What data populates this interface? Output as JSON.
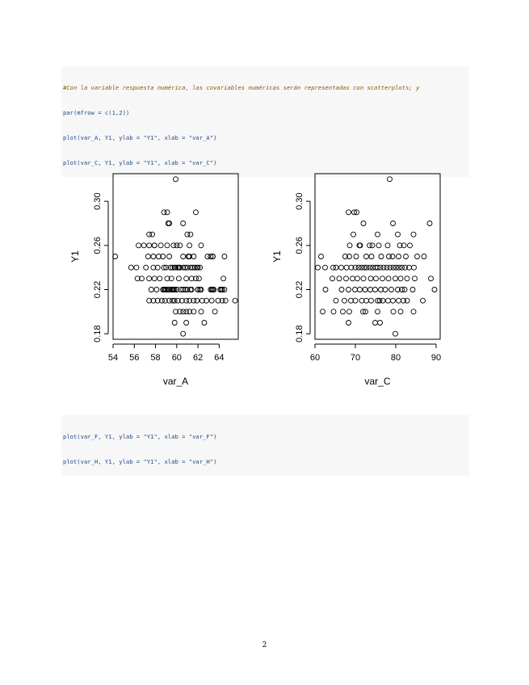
{
  "code_block_1": {
    "lines": [
      "#Con la variable respuesta numérica, las covariables numéricas serán representadas con scatterplots; y",
      "par(mfrow = c(1,2))",
      "plot(var_A, Y1, ylab = \"Y1\", xlab = \"var_A\")",
      "plot(var_C, Y1, ylab = \"Y1\", xlab = \"var_C\")"
    ]
  },
  "code_block_2": {
    "lines": [
      "plot(var_F, Y1, ylab = \"Y1\", xlab = \"var_F\")",
      "plot(var_H, Y1, ylab = \"Y1\", xlab = \"var_H\")"
    ]
  },
  "page_number": "2",
  "chart_data": [
    {
      "type": "scatter",
      "xlabel": "var_A",
      "ylabel": "Y1",
      "xlim": [
        54,
        65.8
      ],
      "ylim": [
        0.175,
        0.325
      ],
      "xticks": [
        54,
        56,
        58,
        60,
        62,
        64
      ],
      "yticks": [
        0.18,
        0.22,
        0.26,
        0.3
      ],
      "x": [
        59.9,
        54.2,
        58.8,
        59.1,
        59.2,
        59.3,
        61.8,
        60.6,
        61.0,
        61.3,
        57.4,
        57.7,
        57.9,
        61.2,
        56.4,
        56.9,
        57.4,
        57.9,
        58.5,
        59.1,
        59.7,
        60.0,
        60.3,
        62.3,
        63.4,
        57.3,
        57.8,
        58.3,
        58.7,
        59.3,
        60.6,
        61.1,
        61.2,
        61.6,
        62.9,
        63.2,
        63.4,
        64.5,
        55.7,
        56.2,
        57.1,
        57.8,
        58.2,
        58.8,
        59.0,
        59.4,
        59.6,
        59.8,
        59.9,
        60.1,
        60.2,
        60.3,
        60.6,
        60.8,
        61.0,
        61.3,
        61.5,
        61.7,
        61.9,
        62.0,
        62.2,
        56.3,
        56.7,
        57.4,
        57.9,
        58.4,
        59.1,
        59.5,
        60.2,
        60.9,
        61.4,
        61.8,
        62.1,
        64.4,
        57.6,
        58.1,
        58.7,
        59.2,
        59.6,
        60.0,
        60.6,
        61.3,
        62.0,
        62.2,
        63.5,
        64.2,
        64.5,
        58.8,
        58.9,
        59.0,
        59.3,
        59.5,
        59.6,
        59.7,
        59.8,
        60.0,
        60.4,
        60.8,
        61.0,
        61.4,
        62.0,
        62.3,
        63.2,
        63.3,
        63.4,
        64.1,
        64.3,
        57.4,
        57.8,
        58.2,
        58.6,
        58.9,
        59.3,
        59.6,
        59.8,
        60.1,
        60.5,
        60.9,
        61.2,
        61.6,
        61.9,
        62.4,
        62.8,
        63.3,
        63.9,
        64.3,
        64.6,
        65.5,
        59.9,
        60.3,
        60.6,
        60.9,
        61.2,
        61.6,
        62.3,
        63.6,
        59.8,
        60.9,
        62.6,
        60.6
      ],
      "y": [
        0.32,
        0.25,
        0.29,
        0.29,
        0.28,
        0.28,
        0.29,
        0.28,
        0.27,
        0.27,
        0.27,
        0.27,
        0.26,
        0.26,
        0.26,
        0.26,
        0.26,
        0.26,
        0.26,
        0.26,
        0.26,
        0.26,
        0.26,
        0.26,
        0.25,
        0.25,
        0.25,
        0.25,
        0.25,
        0.25,
        0.25,
        0.25,
        0.25,
        0.25,
        0.25,
        0.25,
        0.25,
        0.25,
        0.24,
        0.24,
        0.24,
        0.24,
        0.24,
        0.24,
        0.24,
        0.24,
        0.24,
        0.24,
        0.24,
        0.24,
        0.24,
        0.24,
        0.24,
        0.24,
        0.24,
        0.24,
        0.24,
        0.24,
        0.24,
        0.24,
        0.24,
        0.23,
        0.23,
        0.23,
        0.23,
        0.23,
        0.23,
        0.23,
        0.23,
        0.23,
        0.23,
        0.23,
        0.23,
        0.23,
        0.22,
        0.22,
        0.22,
        0.22,
        0.22,
        0.22,
        0.22,
        0.22,
        0.22,
        0.22,
        0.22,
        0.22,
        0.22,
        0.22,
        0.22,
        0.22,
        0.22,
        0.22,
        0.22,
        0.22,
        0.22,
        0.22,
        0.22,
        0.22,
        0.22,
        0.22,
        0.22,
        0.22,
        0.22,
        0.22,
        0.22,
        0.22,
        0.22,
        0.21,
        0.21,
        0.21,
        0.21,
        0.21,
        0.21,
        0.21,
        0.21,
        0.21,
        0.21,
        0.21,
        0.21,
        0.21,
        0.21,
        0.21,
        0.21,
        0.21,
        0.21,
        0.21,
        0.21,
        0.21,
        0.2,
        0.2,
        0.2,
        0.2,
        0.2,
        0.2,
        0.2,
        0.2,
        0.19,
        0.19,
        0.19,
        0.18
      ]
    },
    {
      "type": "scatter",
      "xlabel": "var_C",
      "ylabel": "Y1",
      "xlim": [
        60,
        91
      ],
      "ylim": [
        0.175,
        0.325
      ],
      "xticks": [
        60,
        70,
        80,
        90
      ],
      "yticks": [
        0.18,
        0.22,
        0.26,
        0.3
      ],
      "x": [
        78.5,
        68.3,
        69.7,
        70.3,
        72.0,
        79.3,
        88.4,
        69.5,
        75.5,
        80.5,
        84.4,
        68.6,
        71.0,
        71.2,
        73.5,
        74.2,
        75.8,
        78.0,
        81.0,
        82.0,
        83.5,
        61.5,
        67.5,
        68.5,
        70.2,
        72.7,
        74.0,
        76.4,
        78.3,
        79.2,
        80.7,
        82.5,
        85.3,
        87.0,
        60.7,
        62.5,
        64.5,
        65.2,
        66.5,
        67.8,
        69.0,
        70.0,
        70.8,
        71.5,
        72.2,
        72.8,
        73.6,
        74.3,
        75.0,
        75.5,
        76.2,
        77.0,
        77.8,
        78.6,
        79.4,
        80.1,
        80.8,
        81.5,
        82.3,
        83.3,
        84.5,
        64.3,
        66.0,
        67.7,
        69.3,
        70.5,
        72.0,
        73.8,
        75.1,
        76.7,
        78.2,
        79.9,
        81.2,
        82.8,
        84.7,
        88.7,
        62.6,
        66.6,
        68.3,
        69.9,
        71.1,
        72.4,
        73.7,
        74.9,
        76.3,
        77.4,
        78.9,
        80.5,
        81.5,
        82.2,
        84.2,
        89.6,
        65.2,
        67.3,
        68.9,
        70.0,
        71.6,
        72.7,
        73.9,
        75.5,
        76.0,
        76.8,
        78.1,
        79.3,
        80.7,
        81.9,
        82.8,
        86.7,
        61.9,
        64.6,
        66.9,
        68.5,
        71.9,
        72.5,
        75.5,
        79.4,
        81.2,
        84.4,
        68.3,
        74.9,
        76.1,
        79.9
      ],
      "y": [
        0.32,
        0.29,
        0.29,
        0.29,
        0.28,
        0.28,
        0.28,
        0.27,
        0.27,
        0.27,
        0.27,
        0.26,
        0.26,
        0.26,
        0.26,
        0.26,
        0.26,
        0.26,
        0.26,
        0.26,
        0.26,
        0.25,
        0.25,
        0.25,
        0.25,
        0.25,
        0.25,
        0.25,
        0.25,
        0.25,
        0.25,
        0.25,
        0.25,
        0.25,
        0.24,
        0.24,
        0.24,
        0.24,
        0.24,
        0.24,
        0.24,
        0.24,
        0.24,
        0.24,
        0.24,
        0.24,
        0.24,
        0.24,
        0.24,
        0.24,
        0.24,
        0.24,
        0.24,
        0.24,
        0.24,
        0.24,
        0.24,
        0.24,
        0.24,
        0.24,
        0.24,
        0.23,
        0.23,
        0.23,
        0.23,
        0.23,
        0.23,
        0.23,
        0.23,
        0.23,
        0.23,
        0.23,
        0.23,
        0.23,
        0.23,
        0.23,
        0.22,
        0.22,
        0.22,
        0.22,
        0.22,
        0.22,
        0.22,
        0.22,
        0.22,
        0.22,
        0.22,
        0.22,
        0.22,
        0.22,
        0.22,
        0.22,
        0.21,
        0.21,
        0.21,
        0.21,
        0.21,
        0.21,
        0.21,
        0.21,
        0.21,
        0.21,
        0.21,
        0.21,
        0.21,
        0.21,
        0.21,
        0.21,
        0.2,
        0.2,
        0.2,
        0.2,
        0.2,
        0.2,
        0.2,
        0.2,
        0.2,
        0.2,
        0.19,
        0.19,
        0.19,
        0.18
      ]
    }
  ]
}
